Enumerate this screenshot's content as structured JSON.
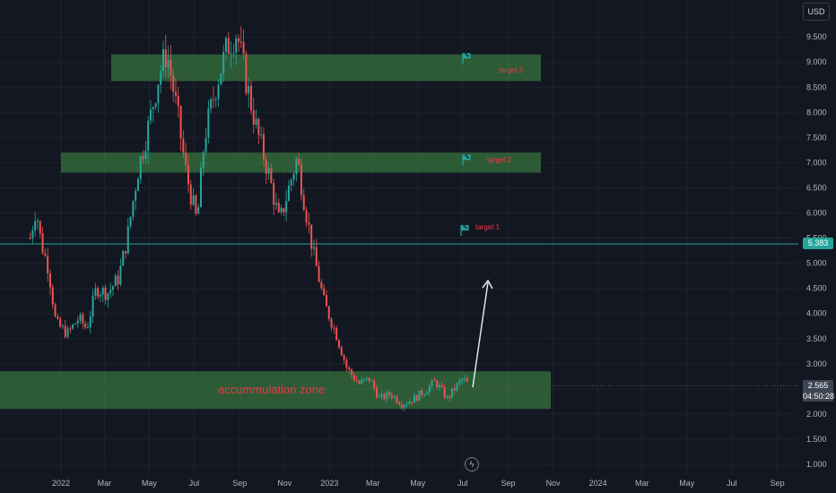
{
  "currency": "USD",
  "y_axis_ticks": [
    "9.500",
    "9.000",
    "8.500",
    "8.000",
    "7.500",
    "7.000",
    "6.500",
    "6.000",
    "5.500",
    "5.000",
    "4.500",
    "4.000",
    "3.500",
    "3.000",
    "2.500",
    "2.000",
    "1.500",
    "1.000"
  ],
  "x_axis_ticks": [
    "2022",
    "Mar",
    "May",
    "Jul",
    "Sep",
    "Nov",
    "2023",
    "Mar",
    "May",
    "Jul",
    "Sep",
    "Nov",
    "2024",
    "Mar",
    "May",
    "Jul",
    "Sep"
  ],
  "last_price_label": "5.383",
  "current_price": {
    "value": "2.565",
    "countdown": "04:50:28"
  },
  "annotations": {
    "accumulation": "accummulation zone",
    "target1": "target 1",
    "target2": "target 2",
    "target3": "target 3"
  },
  "colors": {
    "background": "#131722",
    "up_candle": "#26a69a",
    "down_candle": "#ef5350",
    "zone_fill": "#4caf50",
    "target_text": "#f23645",
    "price_line": "#26a69a"
  },
  "chart_data": {
    "type": "candlestick",
    "y_range": [
      0.8,
      10.0
    ],
    "levels": {
      "accumulation_zone": [
        2.1,
        2.85
      ],
      "target_1": 5.65,
      "target_2": [
        6.8,
        7.2
      ],
      "target_3": [
        8.62,
        9.15
      ],
      "horizontal_line": 5.383
    },
    "close_path": [
      [
        "2021-11-20",
        5.5
      ],
      [
        "2021-11-28",
        6.1
      ],
      [
        "2021-12-05",
        5.4
      ],
      [
        "2021-12-15",
        4.9
      ],
      [
        "2021-12-25",
        3.8
      ],
      [
        "2022-01-10",
        3.6
      ],
      [
        "2022-01-25",
        3.9
      ],
      [
        "2022-02-05",
        3.7
      ],
      [
        "2022-02-18",
        4.5
      ],
      [
        "2022-03-05",
        4.4
      ],
      [
        "2022-03-20",
        4.7
      ],
      [
        "2022-04-01",
        5.5
      ],
      [
        "2022-04-15",
        6.8
      ],
      [
        "2022-05-01",
        7.8
      ],
      [
        "2022-05-15",
        8.8
      ],
      [
        "2022-05-25",
        9.2
      ],
      [
        "2022-06-08",
        8.0
      ],
      [
        "2022-06-20",
        6.8
      ],
      [
        "2022-07-05",
        5.8
      ],
      [
        "2022-07-15",
        7.5
      ],
      [
        "2022-08-01",
        8.6
      ],
      [
        "2022-08-15",
        9.3
      ],
      [
        "2022-08-28",
        9.6
      ],
      [
        "2022-09-10",
        8.6
      ],
      [
        "2022-09-25",
        7.6
      ],
      [
        "2022-10-10",
        6.8
      ],
      [
        "2022-10-25",
        5.8
      ],
      [
        "2022-11-05",
        6.4
      ],
      [
        "2022-11-18",
        7.1
      ],
      [
        "2022-11-28",
        6.2
      ],
      [
        "2022-12-10",
        5.2
      ],
      [
        "2022-12-25",
        4.2
      ],
      [
        "2023-01-10",
        3.6
      ],
      [
        "2023-01-25",
        2.9
      ],
      [
        "2023-02-10",
        2.6
      ],
      [
        "2023-02-25",
        2.7
      ],
      [
        "2023-03-10",
        2.3
      ],
      [
        "2023-03-25",
        2.4
      ],
      [
        "2023-04-10",
        2.2
      ],
      [
        "2023-04-25",
        2.3
      ],
      [
        "2023-05-10",
        2.45
      ],
      [
        "2023-05-25",
        2.65
      ],
      [
        "2023-06-10",
        2.3
      ],
      [
        "2023-06-20",
        2.5
      ],
      [
        "2023-07-01",
        2.7
      ],
      [
        "2023-07-10",
        2.565
      ]
    ]
  }
}
